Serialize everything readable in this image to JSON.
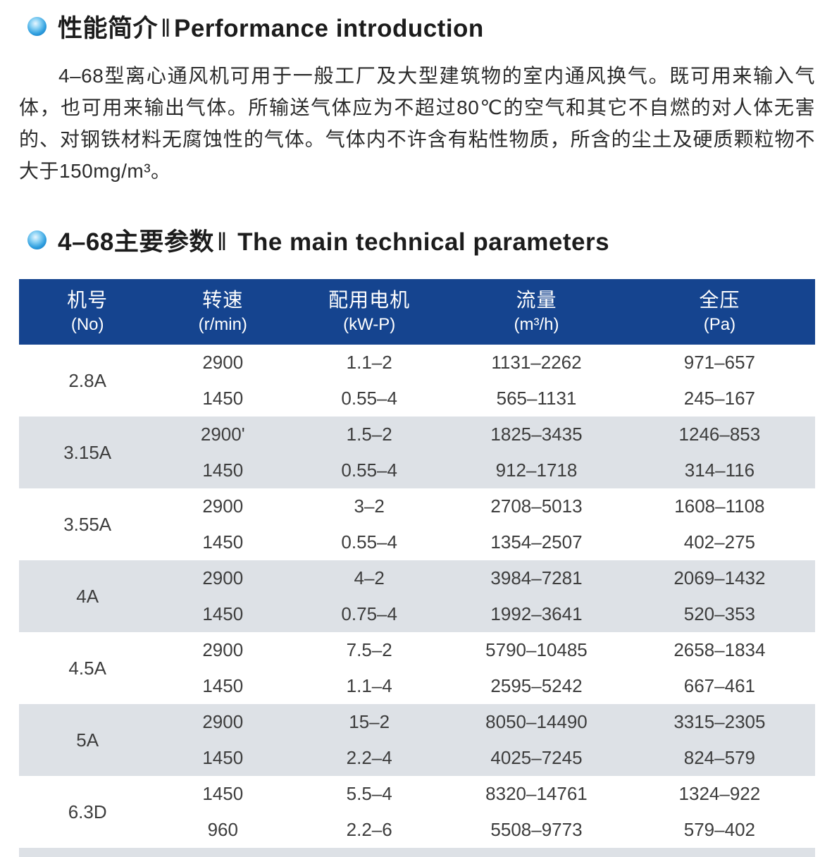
{
  "accent": {
    "header_bg": "#15448f",
    "row_alt_bg": "#dde1e6",
    "bullet_blue": "#2f9fdf"
  },
  "section1": {
    "title_zh": "性能简介",
    "separator": "‖",
    "title_en": "Performance introduction",
    "paragraph": "4–68型离心通风机可用于一般工厂及大型建筑物的室内通风换气。既可用来输入气体，也可用来输出气体。所输送气体应为不超过80℃的空气和其它不自燃的对人体无害的、对钢铁材料无腐蚀性的气体。气体内不许含有粘性物质，所含的尘土及硬质颗粒物不大于150mg/m³。"
  },
  "section2": {
    "title_zh": "4–68主要参数",
    "separator": "‖",
    "title_en": " The main technical parameters"
  },
  "table": {
    "headers": [
      {
        "zh": "机号",
        "unit": "(No)"
      },
      {
        "zh": "转速",
        "unit": "(r/min)"
      },
      {
        "zh": "配用电机",
        "unit": "(kW-P)"
      },
      {
        "zh": "流量",
        "unit": "(m³/h)"
      },
      {
        "zh": "全压",
        "unit": "(Pa)"
      }
    ],
    "groups": [
      {
        "no": "2.8A",
        "rows": [
          [
            "2900",
            "1.1–2",
            "1131–2262",
            "971–657"
          ],
          [
            "1450",
            "0.55–4",
            "565–1131",
            "245–167"
          ]
        ]
      },
      {
        "no": "3.15A",
        "rows": [
          [
            "2900'",
            "1.5–2",
            "1825–3435",
            "1246–853"
          ],
          [
            "1450",
            "0.55–4",
            "912–1718",
            "314–116"
          ]
        ]
      },
      {
        "no": "3.55A",
        "rows": [
          [
            "2900",
            "3–2",
            "2708–5013",
            "1608–1108"
          ],
          [
            "1450",
            "0.55–4",
            "1354–2507",
            "402–275"
          ]
        ]
      },
      {
        "no": "4A",
        "rows": [
          [
            "2900",
            "4–2",
            "3984–7281",
            "2069–1432"
          ],
          [
            "1450",
            "0.75–4",
            "1992–3641",
            "520–353"
          ]
        ]
      },
      {
        "no": "4.5A",
        "rows": [
          [
            "2900",
            "7.5–2",
            "5790–10485",
            "2658–1834"
          ],
          [
            "1450",
            "1.1–4",
            "2595–5242",
            "667–461"
          ]
        ]
      },
      {
        "no": "5A",
        "rows": [
          [
            "2900",
            "15–2",
            "8050–14490",
            "3315–2305"
          ],
          [
            "1450",
            "2.2–4",
            "4025–7245",
            "824–579"
          ]
        ]
      },
      {
        "no": "6.3D",
        "rows": [
          [
            "1450",
            "5.5–4",
            "8320–14761",
            "1324–922"
          ],
          [
            "960",
            "2.2–6",
            "5508–9773",
            "579–402"
          ]
        ]
      }
    ]
  }
}
